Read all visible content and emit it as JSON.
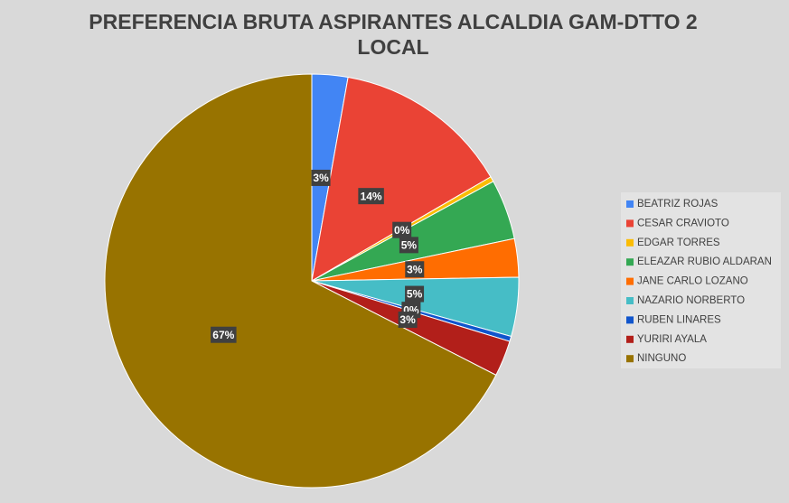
{
  "chart_data": {
    "type": "pie",
    "title": "PREFERENCIA BRUTA ASPIRANTES ALCALDIA GAM-DTTO 2 LOCAL",
    "categories": [
      "BEATRIZ ROJAS",
      "CESAR CRAVIOTO",
      "EDGAR TORRES",
      "ELEAZAR RUBIO ALDARAN",
      "JANE CARLO LOZANO",
      "NAZARIO NORBERTO",
      "RUBEN LINARES",
      "YURIRI AYALA",
      "NINGUNO"
    ],
    "values": [
      2.8,
      13.8,
      0.4,
      4.7,
      3.0,
      4.6,
      0.4,
      2.8,
      67.4
    ],
    "value_labels": [
      "3%",
      "14%",
      "0%",
      "5%",
      "3%",
      "5%",
      "0%",
      "3%",
      "67%"
    ],
    "colors": [
      "#4285f4",
      "#ea4335",
      "#fbbc04",
      "#34a853",
      "#ff6d01",
      "#46bdc6",
      "#1155cc",
      "#b21f1a",
      "#987300"
    ],
    "legend": "right"
  }
}
